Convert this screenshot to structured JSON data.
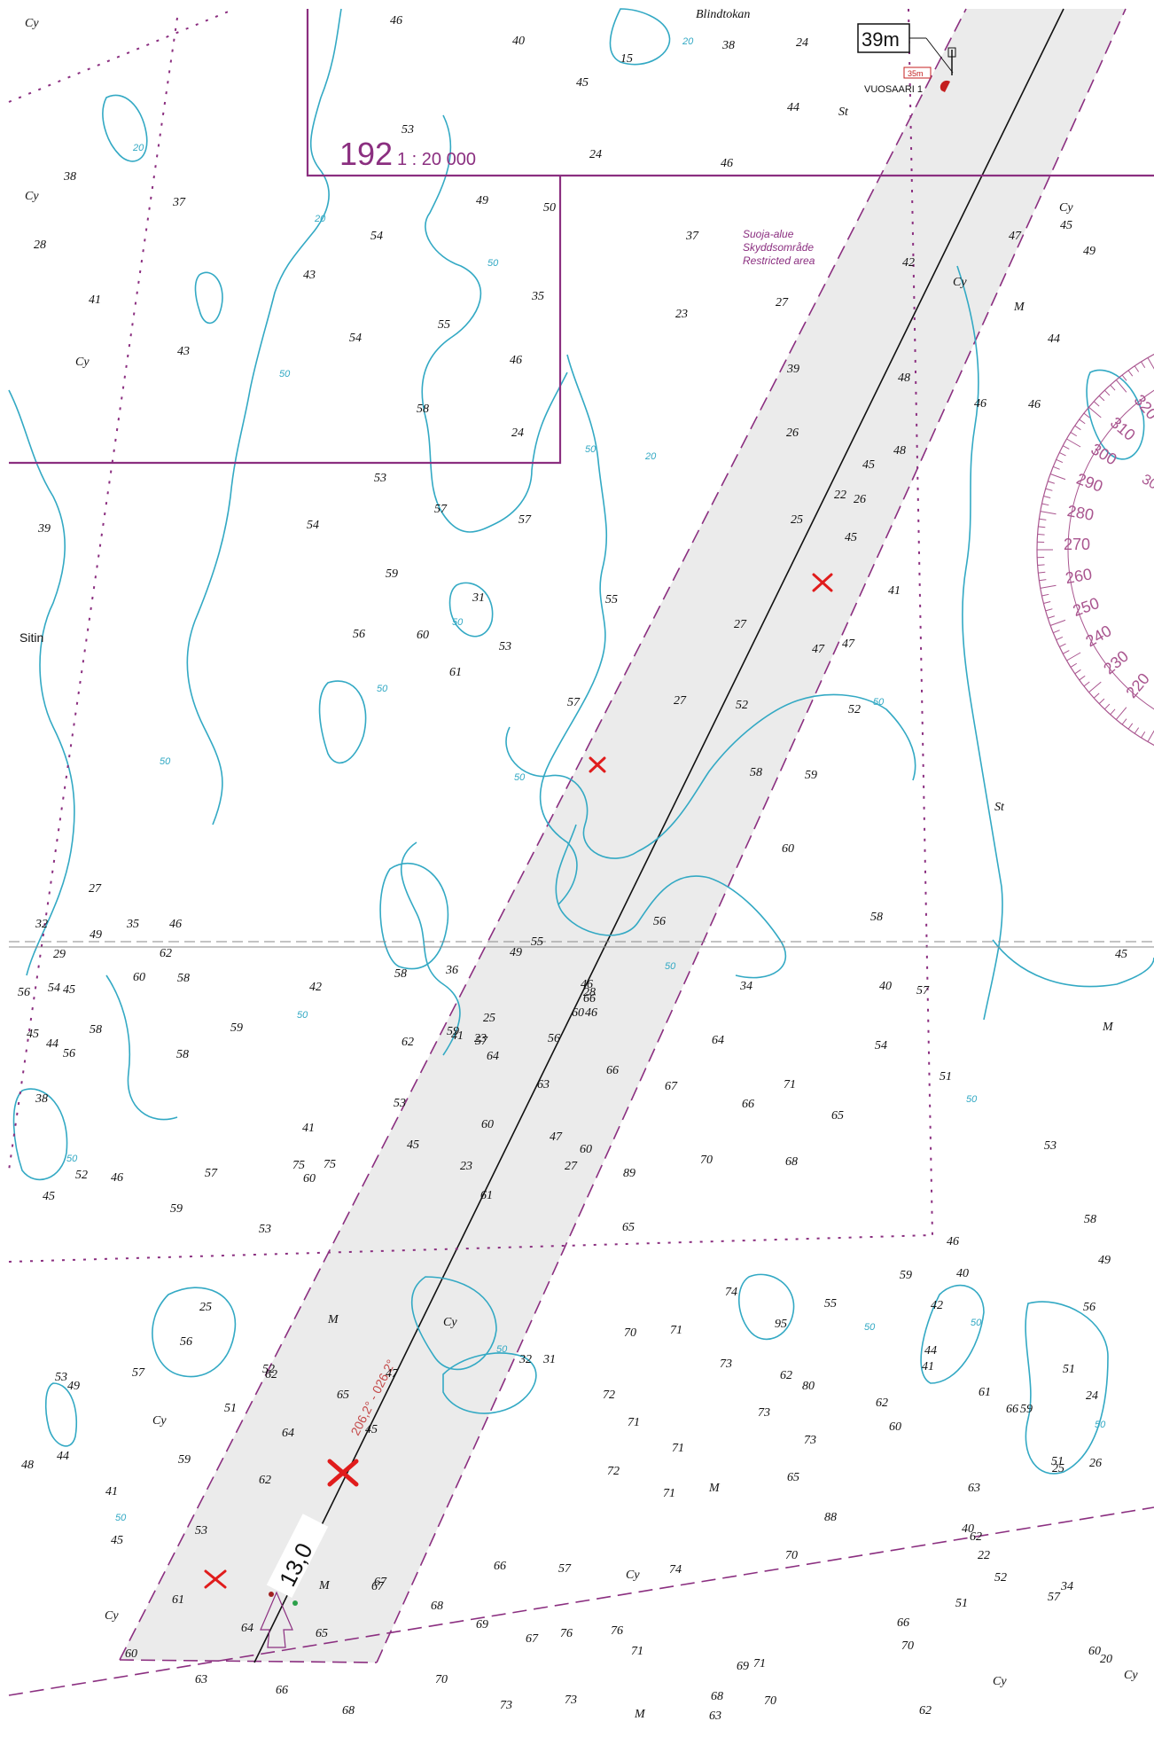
{
  "chart_label": {
    "number": "192",
    "scale": "1 : 20 000"
  },
  "place_names": {
    "blindtokan": "Blindtokan",
    "sitin": "Sitin",
    "vuosaari": "VUOSAARI 1"
  },
  "beacon": {
    "height_label": "39m",
    "sub_label": "35m"
  },
  "restricted_area": {
    "fi": "Suoja-alue",
    "sv": "Skyddsområde",
    "en": "Restricted area"
  },
  "fairway": {
    "depth_label": "13,0",
    "bearing": "206,2° - 026,2°",
    "leading_light_label": "◊"
  },
  "seabed_codes": [
    "Cy",
    "M",
    "St"
  ],
  "compass_degrees": [
    "320",
    "310",
    "300",
    "290",
    "280",
    "270",
    "260",
    "250",
    "240",
    "230",
    "220",
    "300"
  ],
  "soundings": [
    {
      "v": "46"
    },
    {
      "v": "40"
    },
    {
      "v": "45"
    },
    {
      "v": "15"
    },
    {
      "v": "38"
    },
    {
      "v": "24"
    },
    {
      "v": "44"
    },
    {
      "v": "53"
    },
    {
      "v": "24"
    },
    {
      "v": "46"
    },
    {
      "v": "38"
    },
    {
      "v": "37"
    },
    {
      "v": "28"
    },
    {
      "v": "41"
    },
    {
      "v": "43"
    },
    {
      "v": "54"
    },
    {
      "v": "43"
    },
    {
      "v": "55"
    },
    {
      "v": "54"
    },
    {
      "v": "49"
    },
    {
      "v": "50"
    },
    {
      "v": "35"
    },
    {
      "v": "46"
    },
    {
      "v": "58"
    },
    {
      "v": "24"
    },
    {
      "v": "53"
    },
    {
      "v": "57"
    },
    {
      "v": "57"
    },
    {
      "v": "37"
    },
    {
      "v": "27"
    },
    {
      "v": "23"
    },
    {
      "v": "39"
    },
    {
      "v": "26"
    },
    {
      "v": "22"
    },
    {
      "v": "25"
    },
    {
      "v": "26"
    },
    {
      "v": "45"
    },
    {
      "v": "45"
    },
    {
      "v": "47"
    },
    {
      "v": "41"
    },
    {
      "v": "42"
    },
    {
      "v": "48"
    },
    {
      "v": "48"
    },
    {
      "v": "46"
    },
    {
      "v": "45"
    },
    {
      "v": "45"
    },
    {
      "v": "47"
    },
    {
      "v": "49"
    },
    {
      "v": "44"
    },
    {
      "v": "46"
    },
    {
      "v": "39"
    },
    {
      "v": "54"
    },
    {
      "v": "59"
    },
    {
      "v": "56"
    },
    {
      "v": "31"
    },
    {
      "v": "60"
    },
    {
      "v": "53"
    },
    {
      "v": "61"
    },
    {
      "v": "55"
    },
    {
      "v": "57"
    },
    {
      "v": "27"
    },
    {
      "v": "27"
    },
    {
      "v": "52"
    },
    {
      "v": "47"
    },
    {
      "v": "52"
    },
    {
      "v": "58"
    },
    {
      "v": "59"
    },
    {
      "v": "60"
    },
    {
      "v": "56"
    },
    {
      "v": "58"
    },
    {
      "v": "54"
    },
    {
      "v": "36"
    },
    {
      "v": "41"
    },
    {
      "v": "23"
    },
    {
      "v": "46"
    },
    {
      "v": "64"
    },
    {
      "v": "63"
    },
    {
      "v": "66"
    },
    {
      "v": "67"
    },
    {
      "v": "66"
    },
    {
      "v": "71"
    },
    {
      "v": "65"
    },
    {
      "v": "68"
    },
    {
      "v": "70"
    },
    {
      "v": "89"
    },
    {
      "v": "65"
    },
    {
      "v": "64"
    },
    {
      "v": "60"
    },
    {
      "v": "61"
    },
    {
      "v": "75"
    },
    {
      "v": "74"
    },
    {
      "v": "95"
    },
    {
      "v": "70"
    },
    {
      "v": "71"
    },
    {
      "v": "73"
    },
    {
      "v": "72"
    },
    {
      "v": "71"
    },
    {
      "v": "73"
    },
    {
      "v": "80"
    },
    {
      "v": "62"
    },
    {
      "v": "73"
    },
    {
      "v": "71"
    },
    {
      "v": "72"
    },
    {
      "v": "71"
    },
    {
      "v": "65"
    },
    {
      "v": "88"
    },
    {
      "v": "76"
    },
    {
      "v": "74"
    },
    {
      "v": "70"
    },
    {
      "v": "69"
    },
    {
      "v": "66"
    },
    {
      "v": "57"
    },
    {
      "v": "67"
    },
    {
      "v": "68"
    },
    {
      "v": "69"
    },
    {
      "v": "67"
    },
    {
      "v": "76"
    },
    {
      "v": "71"
    },
    {
      "v": "71"
    },
    {
      "v": "70"
    },
    {
      "v": "70"
    },
    {
      "v": "70"
    },
    {
      "v": "73"
    },
    {
      "v": "73"
    },
    {
      "v": "68"
    },
    {
      "v": "63"
    },
    {
      "v": "66"
    },
    {
      "v": "62"
    },
    {
      "v": "51"
    },
    {
      "v": "57"
    },
    {
      "v": "63"
    },
    {
      "v": "66"
    },
    {
      "v": "68"
    },
    {
      "v": "60"
    },
    {
      "v": "61"
    },
    {
      "v": "64"
    },
    {
      "v": "65"
    },
    {
      "v": "67"
    },
    {
      "v": "62"
    },
    {
      "v": "53"
    },
    {
      "v": "59"
    },
    {
      "v": "49"
    },
    {
      "v": "45"
    },
    {
      "v": "41"
    },
    {
      "v": "48"
    },
    {
      "v": "44"
    },
    {
      "v": "53"
    },
    {
      "v": "57"
    },
    {
      "v": "56"
    },
    {
      "v": "52"
    },
    {
      "v": "51"
    },
    {
      "v": "62"
    },
    {
      "v": "64"
    },
    {
      "v": "65"
    },
    {
      "v": "45"
    },
    {
      "v": "47"
    },
    {
      "v": "32"
    },
    {
      "v": "31"
    },
    {
      "v": "25"
    },
    {
      "v": "75"
    },
    {
      "v": "59"
    },
    {
      "v": "52"
    },
    {
      "v": "46"
    },
    {
      "v": "45"
    },
    {
      "v": "38"
    },
    {
      "v": "54"
    },
    {
      "v": "56"
    },
    {
      "v": "58"
    },
    {
      "v": "60"
    },
    {
      "v": "62"
    },
    {
      "v": "58"
    },
    {
      "v": "58"
    },
    {
      "v": "59"
    },
    {
      "v": "57"
    },
    {
      "v": "53"
    },
    {
      "v": "60"
    },
    {
      "v": "42"
    },
    {
      "v": "41"
    },
    {
      "v": "45"
    },
    {
      "v": "53"
    },
    {
      "v": "58"
    },
    {
      "v": "62"
    },
    {
      "v": "59"
    },
    {
      "v": "57"
    },
    {
      "v": "25"
    },
    {
      "v": "23"
    },
    {
      "v": "27"
    },
    {
      "v": "47"
    },
    {
      "v": "60"
    },
    {
      "v": "56"
    },
    {
      "v": "40"
    },
    {
      "v": "34"
    },
    {
      "v": "32"
    },
    {
      "v": "29"
    },
    {
      "v": "49"
    },
    {
      "v": "55"
    },
    {
      "v": "60"
    },
    {
      "v": "66"
    },
    {
      "v": "46"
    },
    {
      "v": "28"
    },
    {
      "v": "57"
    },
    {
      "v": "51"
    },
    {
      "v": "53"
    },
    {
      "v": "58"
    },
    {
      "v": "46"
    },
    {
      "v": "40"
    },
    {
      "v": "44"
    },
    {
      "v": "56"
    },
    {
      "v": "49"
    },
    {
      "v": "59"
    },
    {
      "v": "60"
    },
    {
      "v": "62"
    },
    {
      "v": "55"
    },
    {
      "v": "42"
    },
    {
      "v": "41"
    },
    {
      "v": "51"
    },
    {
      "v": "59"
    },
    {
      "v": "61"
    },
    {
      "v": "66"
    },
    {
      "v": "51"
    },
    {
      "v": "63"
    },
    {
      "v": "62"
    },
    {
      "v": "52"
    },
    {
      "v": "60"
    },
    {
      "v": "34"
    },
    {
      "v": "20"
    },
    {
      "v": "25"
    },
    {
      "v": "26"
    },
    {
      "v": "24"
    },
    {
      "v": "40"
    },
    {
      "v": "22"
    },
    {
      "v": "27"
    },
    {
      "v": "56"
    },
    {
      "v": "44"
    },
    {
      "v": "45"
    },
    {
      "v": "45"
    },
    {
      "v": "49"
    },
    {
      "v": "35"
    },
    {
      "v": "46"
    }
  ]
}
